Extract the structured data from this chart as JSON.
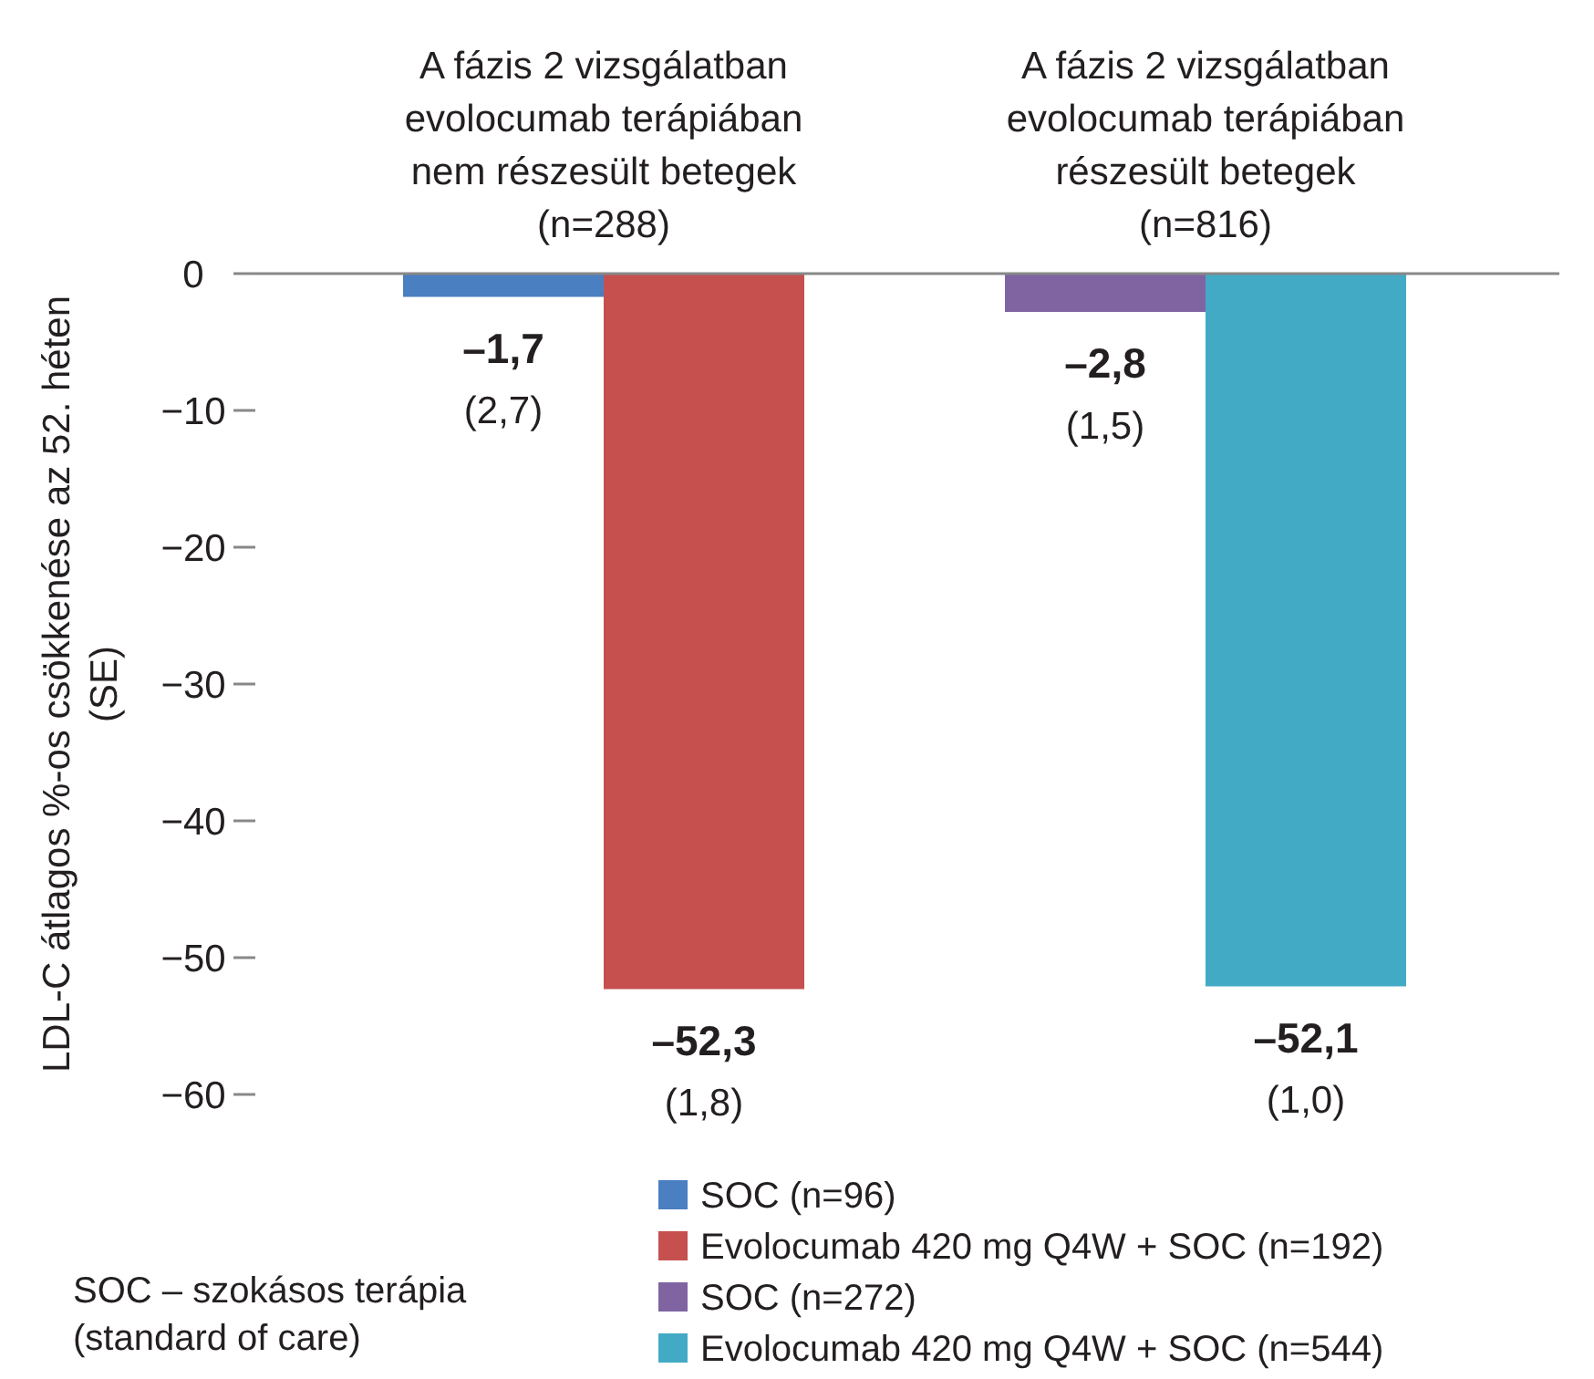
{
  "chart_data": {
    "type": "bar",
    "categories": [
      "A fázis 2 vizsgálatban\nevolocumab terápiában\nnem részesült betegek\n(n=288)",
      "A fázis 2 vizsgálatban\nevolocumab terápiában\nrészesült betegek\n(n=816)"
    ],
    "ylabel": "LDL-C átlagos %-os csökkenése az  52. héten\n(SE)",
    "ylim": [
      -60,
      0
    ],
    "yticks": [
      0,
      {
        "value": -10,
        "label": "−10"
      },
      {
        "value": -20,
        "label": "−20"
      },
      {
        "value": -30,
        "label": "−30"
      },
      {
        "value": -40,
        "label": "−40"
      },
      {
        "value": -50,
        "label": "−50"
      },
      {
        "value": -60,
        "label": "−60"
      }
    ],
    "series": [
      {
        "name": "SOC (n=96)",
        "color": "#4a7fc1",
        "values": [
          -1.7,
          null
        ],
        "value_labels": [
          "–1,7",
          null
        ]
      },
      {
        "name": "Evolocumab 420 mg Q4W + SOC (n=192)",
        "color": "#c5504e",
        "values": [
          -52.3,
          null
        ],
        "value_labels": [
          "–52,3",
          null
        ]
      },
      {
        "name": "SOC (n=272)",
        "color": "#8064a2",
        "values": [
          null,
          -2.8
        ],
        "value_labels": [
          null,
          "–2,8"
        ]
      },
      {
        "name": "Evolocumab 420 mg Q4W + SOC (n=544)",
        "color": "#43aac6",
        "values": [
          null,
          -52.1
        ],
        "value_labels": [
          null,
          "–52,1"
        ]
      }
    ],
    "annotations": [
      "(2,7)",
      "(1,8)",
      "(1,5)",
      "(1,0)",
      "SOC – szokásos terápia\n(standard of care)"
    ],
    "legend": "bottom right",
    "grid": false
  }
}
